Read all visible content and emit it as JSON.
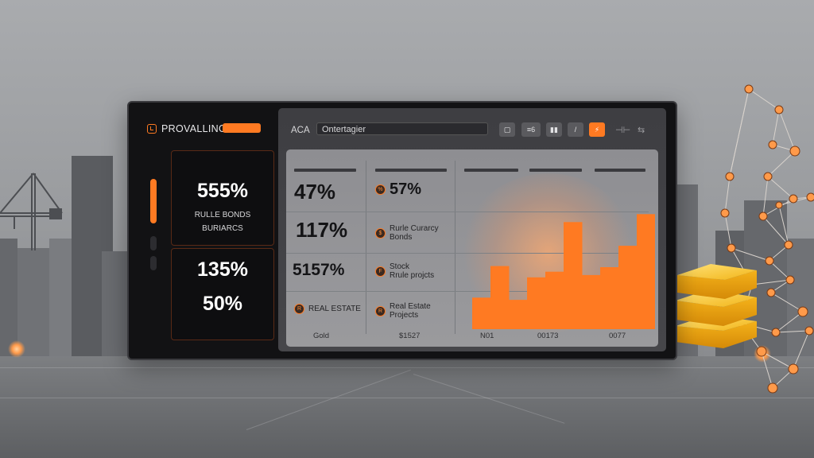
{
  "app": {
    "title": "PROVALLING"
  },
  "toolbar": {
    "label": "ACA",
    "search_value": "Ontertagier",
    "buttons": [
      {
        "label": "▢",
        "icon": "tablet-icon"
      },
      {
        "label": "≡6",
        "icon": "list-icon"
      },
      {
        "label": "▮▮",
        "icon": "bar-chart-icon"
      },
      {
        "label": "/",
        "icon": "line-icon"
      },
      {
        "label": "⚡",
        "icon": "bolt-icon",
        "active": true
      }
    ],
    "extra": [
      {
        "label": "⊣⊢",
        "icon": "split-icon"
      },
      {
        "label": "⇆",
        "icon": "swap-icon"
      }
    ]
  },
  "cards": [
    {
      "value": "555%",
      "lines": [
        "RULLE BONDS",
        "BURIARCS"
      ]
    },
    {
      "value": "135%",
      "value2": "50%"
    }
  ],
  "table": {
    "col1": [
      "47%",
      "117%",
      "5157%"
    ],
    "col1_footer": "REAL ESTATE",
    "col1_footer_icon": "building-icon",
    "col2_rows": [
      {
        "icon": "percent-icon",
        "glyph": "%",
        "text": "57%",
        "big": true
      },
      {
        "icon": "currency-icon",
        "glyph": "$",
        "text": "Rurle Curarcy\nBonds"
      },
      {
        "icon": "stock-icon",
        "glyph": "F",
        "text": "Stock\nRrule projcts"
      },
      {
        "icon": "realestate-icon",
        "glyph": "R",
        "text": "Real Estate\nProjects"
      }
    ],
    "x_labels": [
      "Gold",
      "$1527",
      "N01",
      "00173",
      "0077"
    ]
  },
  "chart_data": {
    "type": "bar",
    "values": [
      28,
      56,
      26,
      46,
      51,
      95,
      48,
      55,
      74,
      102
    ],
    "ylim": [
      0,
      110
    ],
    "color": "#ff7a22"
  },
  "colors": {
    "accent": "#ff7a22",
    "panel": "#121214"
  }
}
